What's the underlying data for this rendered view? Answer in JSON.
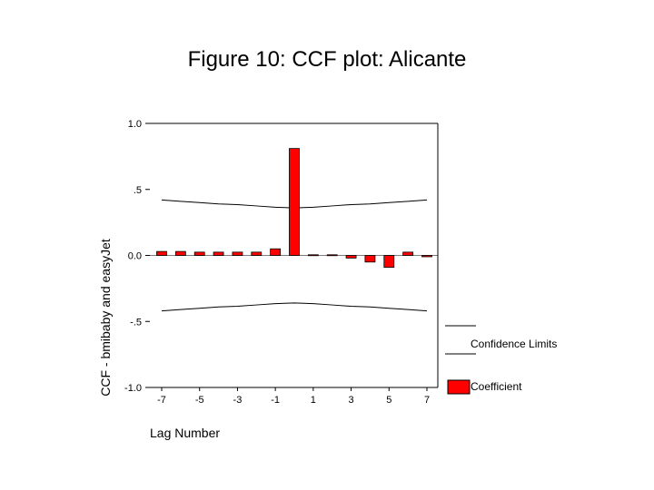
{
  "title": "Figure 10: CCF plot: Alicante",
  "chart_data": {
    "type": "bar",
    "xlabel": "Lag Number",
    "ylabel": "CCF - bmibaby and easyJet",
    "xlim": [
      -7,
      7
    ],
    "ylim": [
      -1.0,
      1.0
    ],
    "x_ticks": [
      -7,
      -5,
      -3,
      -1,
      1,
      3,
      5,
      7
    ],
    "x_tick_labels": [
      "-7",
      "-5",
      "-3",
      "-1",
      "1",
      "3",
      "5",
      "7"
    ],
    "y_ticks": [
      1.0,
      0.5,
      0.0,
      -0.5,
      -1.0
    ],
    "y_tick_labels": [
      "1.0",
      ".5",
      "0.0",
      "-.5",
      "-1.0"
    ],
    "grid": false,
    "legend_position": "right",
    "colors": {
      "coefficient": "#ff0000",
      "edge": "#000000",
      "limits": "#000000"
    },
    "series": [
      {
        "name": "Coefficient",
        "x": [
          -7,
          -6,
          -5,
          -4,
          -3,
          -2,
          -1,
          0,
          1,
          2,
          3,
          4,
          5,
          6,
          7
        ],
        "values": [
          0.03,
          0.03,
          0.025,
          0.025,
          0.025,
          0.025,
          0.05,
          0.81,
          0.005,
          0.005,
          -0.02,
          -0.05,
          -0.09,
          0.025,
          -0.01
        ]
      },
      {
        "name": "Confidence Limits",
        "x": [
          -7,
          -6,
          -5,
          -4,
          -3,
          -2,
          -1,
          0,
          1,
          2,
          3,
          4,
          5,
          6,
          7
        ],
        "upper": [
          0.42,
          0.41,
          0.4,
          0.39,
          0.385,
          0.375,
          0.365,
          0.36,
          0.365,
          0.375,
          0.385,
          0.39,
          0.4,
          0.41,
          0.42
        ],
        "lower": [
          -0.42,
          -0.41,
          -0.4,
          -0.39,
          -0.385,
          -0.375,
          -0.365,
          -0.36,
          -0.365,
          -0.375,
          -0.385,
          -0.39,
          -0.4,
          -0.41,
          -0.42
        ]
      }
    ],
    "legend": [
      "Confidence Limits",
      "Coefficient"
    ]
  }
}
